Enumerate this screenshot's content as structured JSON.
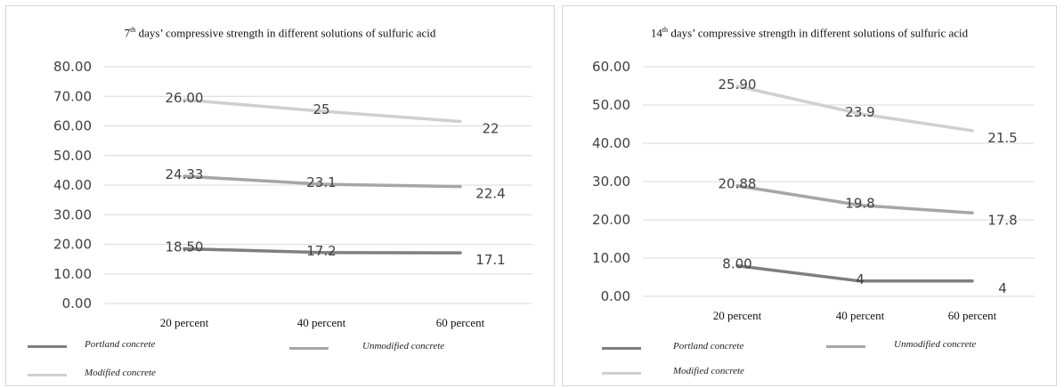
{
  "chart_data": [
    {
      "type": "line",
      "title_main": "7",
      "title_sup": "th",
      "title_rest": " days’ compressive strength in different solutions of sulfuric acid",
      "categories": [
        "20 percent",
        "40 percent",
        "60 percent"
      ],
      "ylim": [
        0,
        80
      ],
      "yticks": [
        "0.00",
        "10.00",
        "20.00",
        "30.00",
        "40.00",
        "50.00",
        "60.00",
        "70.00",
        "80.00"
      ],
      "grid": true,
      "legend_position": "bottom",
      "series": [
        {
          "name": "Portland concrete",
          "color": "#7f7f7f",
          "values": [
            18.5,
            17.2,
            17.1
          ],
          "labels": [
            "18.50",
            "17.2",
            "17.1"
          ]
        },
        {
          "name": "Unmodified concrete",
          "color": "#a6a6a6",
          "values": [
            43.0,
            40.3,
            39.5
          ],
          "labels": [
            "24.33",
            "23.1",
            "22.4"
          ]
        },
        {
          "name": "Modified concrete",
          "color": "#cfcfcf",
          "values": [
            68.8,
            65.0,
            61.5
          ],
          "labels": [
            "26.00",
            "25",
            "22"
          ]
        }
      ]
    },
    {
      "type": "line",
      "title_main": "14",
      "title_sup": "th",
      "title_rest": " days’ compressive strength in different solutions of sulfuric acid",
      "categories": [
        "20 percent",
        "40 percent",
        "60 percent"
      ],
      "ylim": [
        0,
        60
      ],
      "yticks": [
        "0.00",
        "10.00",
        "20.00",
        "30.00",
        "40.00",
        "50.00",
        "60.00"
      ],
      "grid": true,
      "legend_position": "bottom",
      "series": [
        {
          "name": "Portland concrete",
          "color": "#7f7f7f",
          "values": [
            8.0,
            4.0,
            4.0
          ],
          "labels": [
            "8.00",
            "4",
            "4"
          ]
        },
        {
          "name": "Unmodified concrete",
          "color": "#a6a6a6",
          "values": [
            28.9,
            23.8,
            21.8
          ],
          "labels": [
            "20.88",
            "19.8",
            "17.8"
          ]
        },
        {
          "name": "Modified concrete",
          "color": "#cfcfcf",
          "values": [
            54.9,
            47.7,
            43.3
          ],
          "labels": [
            "25.90",
            "23.9",
            "21.5"
          ]
        }
      ]
    }
  ]
}
